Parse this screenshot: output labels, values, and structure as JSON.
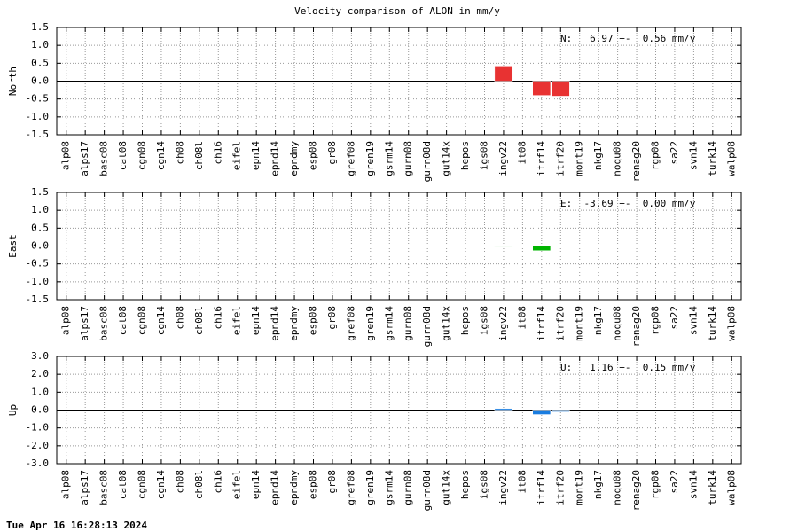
{
  "title": "Velocity comparison of ALON in mm/y",
  "footer": "Tue Apr 16 16:28:13 2024",
  "chart_data": [
    {
      "type": "bar",
      "ylabel": "North",
      "annotation": "N:   6.97 +-  0.56 mm/y",
      "categories": [
        "alp08",
        "alps17",
        "basc08",
        "cat08",
        "cgn08",
        "cgn14",
        "ch08",
        "ch08l",
        "ch16",
        "eifel",
        "epn14",
        "epnd14",
        "epndmy",
        "esp08",
        "gr08",
        "gref08",
        "gren19",
        "gsrm14",
        "gurn08",
        "gurn08d",
        "gut14x",
        "hepos",
        "igs08",
        "ingv22",
        "it08",
        "itrf14",
        "itrf20",
        "mont19",
        "nkg17",
        "noqu08",
        "renag20",
        "rgp08",
        "sa22",
        "svn14",
        "turk14",
        "walp08"
      ],
      "values": [
        null,
        null,
        null,
        null,
        null,
        null,
        null,
        null,
        null,
        null,
        null,
        null,
        null,
        null,
        null,
        null,
        null,
        null,
        null,
        null,
        null,
        null,
        null,
        0.4,
        null,
        -0.4,
        -0.42,
        null,
        null,
        null,
        null,
        null,
        null,
        null,
        null,
        null
      ],
      "color": "#e83232",
      "ylim": [
        -1.5,
        1.5
      ],
      "yticks": [
        1.5,
        {
          "value": 1,
          "label": "1.0"
        },
        0.5,
        {
          "value": 0,
          "label": "0.0"
        },
        -0.5,
        {
          "value": -1,
          "label": "-1.0"
        },
        -1.5
      ],
      "grid": true
    },
    {
      "type": "bar",
      "ylabel": "East",
      "annotation": "E:  -3.69 +-  0.00 mm/y",
      "categories": [
        "alp08",
        "alps17",
        "basc08",
        "cat08",
        "cgn08",
        "cgn14",
        "ch08",
        "ch08l",
        "ch16",
        "eifel",
        "epn14",
        "epnd14",
        "epndmy",
        "esp08",
        "gr08",
        "gref08",
        "gren19",
        "gsrm14",
        "gurn08",
        "gurn08d",
        "gut14x",
        "hepos",
        "igs08",
        "ingv22",
        "it08",
        "itrf14",
        "itrf20",
        "mont19",
        "nkg17",
        "noqu08",
        "renag20",
        "rgp08",
        "sa22",
        "svn14",
        "turk14",
        "walp08"
      ],
      "values": [
        null,
        null,
        null,
        null,
        null,
        null,
        null,
        null,
        null,
        null,
        null,
        null,
        null,
        null,
        null,
        null,
        null,
        null,
        null,
        null,
        null,
        null,
        null,
        -0.02,
        null,
        -0.13,
        null,
        null,
        null,
        null,
        null,
        null,
        null,
        null,
        null,
        null
      ],
      "color": "#00b400",
      "ylim": [
        -1.5,
        1.5
      ],
      "yticks": [
        1.5,
        {
          "value": 1,
          "label": "1.0"
        },
        0.5,
        {
          "value": 0,
          "label": "0.0"
        },
        -0.5,
        {
          "value": -1,
          "label": "-1.0"
        },
        -1.5
      ],
      "grid": true
    },
    {
      "type": "bar",
      "ylabel": "Up",
      "annotation": "U:   1.16 +-  0.15 mm/y",
      "categories": [
        "alp08",
        "alps17",
        "basc08",
        "cat08",
        "cgn08",
        "cgn14",
        "ch08",
        "ch08l",
        "ch16",
        "eifel",
        "epn14",
        "epnd14",
        "epndmy",
        "esp08",
        "gr08",
        "gref08",
        "gren19",
        "gsrm14",
        "gurn08",
        "gurn08d",
        "gut14x",
        "hepos",
        "igs08",
        "ingv22",
        "it08",
        "itrf14",
        "itrf20",
        "mont19",
        "nkg17",
        "noqu08",
        "renag20",
        "rgp08",
        "sa22",
        "svn14",
        "turk14",
        "walp08"
      ],
      "values": [
        null,
        null,
        null,
        null,
        null,
        null,
        null,
        null,
        null,
        null,
        null,
        null,
        null,
        null,
        null,
        null,
        null,
        null,
        null,
        null,
        null,
        null,
        null,
        0.08,
        null,
        -0.25,
        -0.1,
        null,
        null,
        null,
        null,
        null,
        null,
        null,
        null,
        null
      ],
      "color": "#1a7de0",
      "ylim": [
        -3,
        3
      ],
      "yticks": [
        {
          "value": 3,
          "label": "3.0"
        },
        {
          "value": 2,
          "label": "2.0"
        },
        {
          "value": 1,
          "label": "1.0"
        },
        {
          "value": 0,
          "label": "0.0"
        },
        {
          "value": -1,
          "label": "-1.0"
        },
        {
          "value": -2,
          "label": "-2.0"
        },
        {
          "value": -3,
          "label": "-3.0"
        }
      ],
      "grid": true
    }
  ]
}
